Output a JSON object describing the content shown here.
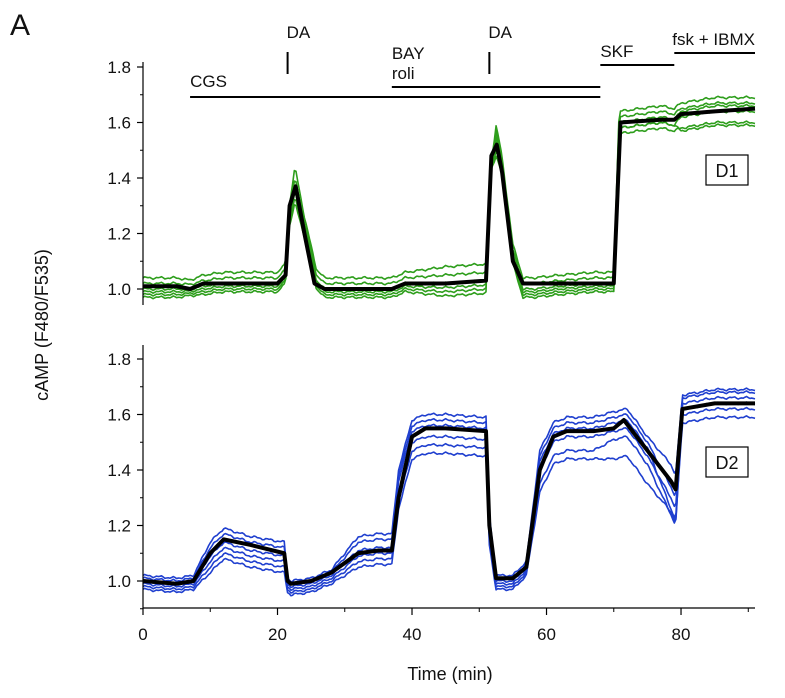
{
  "panel_letter": "A",
  "chart_data": [
    {
      "type": "line",
      "panel_label": "D1",
      "xlabel": "",
      "ylabel": "cAMP (F480/F535)",
      "xlim": [
        0,
        91
      ],
      "ylim": [
        0.9,
        1.85
      ],
      "yticks": [
        1.0,
        1.2,
        1.4,
        1.6,
        1.8
      ],
      "ytick_labels": [
        "1.0",
        "1.2",
        "1.4",
        "1.6",
        "1.8"
      ],
      "colors": {
        "individual": "#2e9e1c",
        "mean": "#000000"
      },
      "annotations": [
        {
          "label": "CGS",
          "kind": "bar",
          "x_start": 7,
          "x_end": 68,
          "level": 1
        },
        {
          "label": "DA",
          "kind": "tick",
          "x": 21.5
        },
        {
          "label": "BAY\nroli",
          "kind": "bar",
          "x_start": 37,
          "x_end": 68,
          "level": 2
        },
        {
          "label": "DA",
          "kind": "tick",
          "x": 51.5
        },
        {
          "label": "SKF",
          "kind": "bar",
          "x_start": 68,
          "x_end": 79,
          "level": 3
        },
        {
          "label": "fsk + IBMX",
          "kind": "bar",
          "x_start": 79,
          "x_end": 91,
          "level": 4
        }
      ],
      "mean": {
        "x": [
          0,
          5,
          7,
          9,
          12,
          20,
          21.2,
          21.8,
          22.7,
          24,
          25.5,
          27,
          30,
          37,
          39,
          45,
          51,
          51.8,
          52.6,
          53.4,
          55,
          56.5,
          58,
          62,
          67,
          70,
          71,
          77,
          79,
          80,
          85,
          91
        ],
        "y": [
          1.01,
          1.01,
          1.0,
          1.02,
          1.02,
          1.02,
          1.05,
          1.3,
          1.37,
          1.2,
          1.02,
          1.0,
          1.0,
          1.0,
          1.02,
          1.02,
          1.03,
          1.48,
          1.52,
          1.42,
          1.1,
          1.02,
          1.02,
          1.02,
          1.02,
          1.02,
          1.6,
          1.61,
          1.61,
          1.63,
          1.64,
          1.65
        ]
      },
      "series": [
        {
          "offset": 0.04,
          "peak1": 1.44,
          "peak2": 1.59,
          "plateau": 1.66,
          "final": 1.69
        },
        {
          "offset": 0.02,
          "peak1": 1.4,
          "peak2": 1.57,
          "plateau": 1.64,
          "final": 1.67
        },
        {
          "offset": 0.0,
          "peak1": 1.38,
          "peak2": 1.55,
          "plateau": 1.62,
          "final": 1.66
        },
        {
          "offset": -0.01,
          "peak1": 1.35,
          "peak2": 1.53,
          "plateau": 1.6,
          "final": 1.64
        },
        {
          "offset": -0.02,
          "peak1": 1.33,
          "peak2": 1.5,
          "plateau": 1.58,
          "final": 1.6
        },
        {
          "offset": -0.03,
          "peak1": 1.31,
          "peak2": 1.48,
          "plateau": 1.6,
          "final": 1.59
        }
      ]
    },
    {
      "type": "line",
      "panel_label": "D2",
      "xlabel": "Time (min)",
      "ylabel": "cAMP (F480/F535)",
      "xlim": [
        0,
        91
      ],
      "ylim": [
        0.9,
        1.85
      ],
      "xticks": [
        0,
        20,
        40,
        60,
        80
      ],
      "xtick_labels": [
        "0",
        "20",
        "40",
        "60",
        "80"
      ],
      "yticks": [
        1.0,
        1.2,
        1.4,
        1.6,
        1.8
      ],
      "ytick_labels": [
        "1.0",
        "1.2",
        "1.4",
        "1.6",
        "1.8"
      ],
      "colors": {
        "individual": "#1f3fcf",
        "mean": "#000000"
      },
      "mean": {
        "x": [
          0,
          5,
          7.5,
          10,
          12,
          16,
          21,
          21.5,
          22,
          25,
          28,
          32,
          35,
          37,
          38,
          40,
          42,
          45,
          51,
          51.5,
          52.5,
          55,
          57,
          59,
          61,
          63,
          67,
          70,
          71.5,
          75,
          78.5,
          79.2,
          80.2,
          85,
          91
        ],
        "y": [
          1.0,
          0.99,
          1.0,
          1.1,
          1.15,
          1.13,
          1.1,
          1.0,
          0.99,
          1.0,
          1.03,
          1.1,
          1.11,
          1.11,
          1.3,
          1.52,
          1.55,
          1.55,
          1.54,
          1.2,
          1.01,
          1.01,
          1.05,
          1.4,
          1.52,
          1.54,
          1.54,
          1.55,
          1.58,
          1.47,
          1.36,
          1.33,
          1.62,
          1.64,
          1.64
        ]
      },
      "series": [
        {
          "base": 1.02,
          "lvl1": 1.19,
          "lvl2": 1.6,
          "lvl3": 1.59,
          "lvl4": 1.62,
          "drop": 1.38,
          "final": 1.69
        },
        {
          "base": 1.01,
          "lvl1": 1.17,
          "lvl2": 1.58,
          "lvl3": 1.57,
          "lvl4": 1.6,
          "drop": 1.3,
          "final": 1.68
        },
        {
          "base": 1.0,
          "lvl1": 1.14,
          "lvl2": 1.56,
          "lvl3": 1.55,
          "lvl4": 1.58,
          "drop": 1.22,
          "final": 1.66
        },
        {
          "base": 0.99,
          "lvl1": 1.12,
          "lvl2": 1.52,
          "lvl3": 1.52,
          "lvl4": 1.55,
          "drop": 1.26,
          "final": 1.64
        },
        {
          "base": 0.98,
          "lvl1": 1.1,
          "lvl2": 1.49,
          "lvl3": 1.47,
          "lvl4": 1.52,
          "drop": 1.2,
          "final": 1.62
        },
        {
          "base": 0.97,
          "lvl1": 1.08,
          "lvl2": 1.46,
          "lvl3": 1.44,
          "lvl4": 1.45,
          "drop": 1.21,
          "final": 1.59
        }
      ]
    }
  ]
}
